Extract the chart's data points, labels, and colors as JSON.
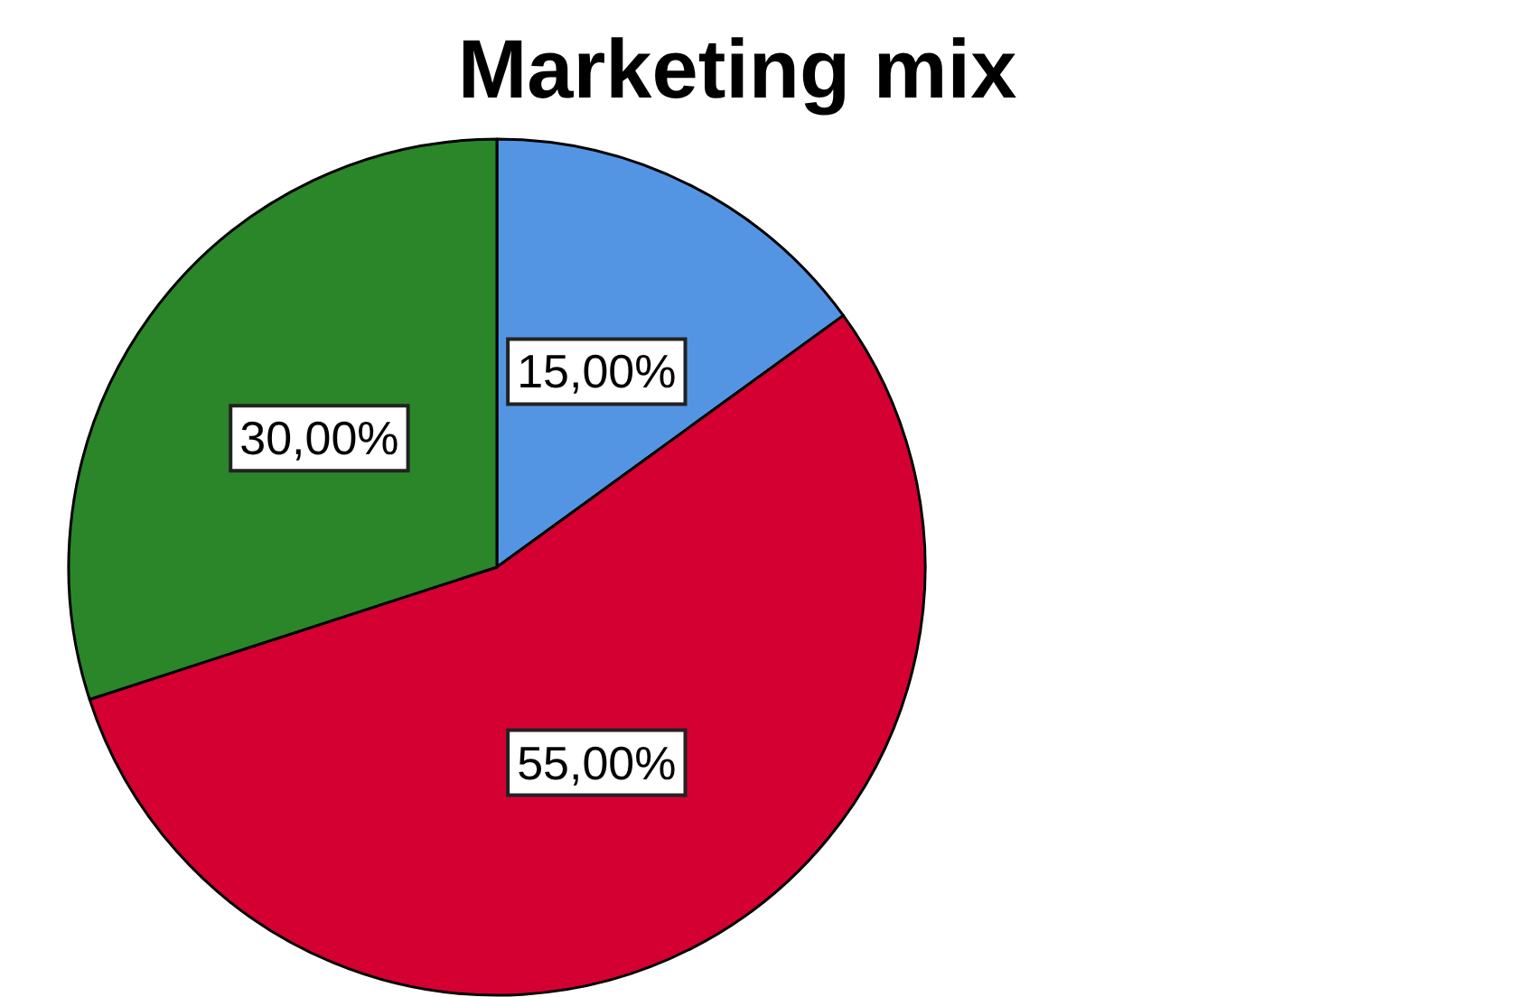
{
  "chart_data": {
    "type": "pie",
    "title": "Marketing mix",
    "categories": [
      null,
      null,
      null
    ],
    "values": [
      15,
      55,
      30
    ],
    "colors": [
      "#5495e3",
      "#d50032",
      "#2a8629"
    ],
    "value_labels": [
      "15,00%",
      "55,00%",
      "30,00%"
    ]
  }
}
